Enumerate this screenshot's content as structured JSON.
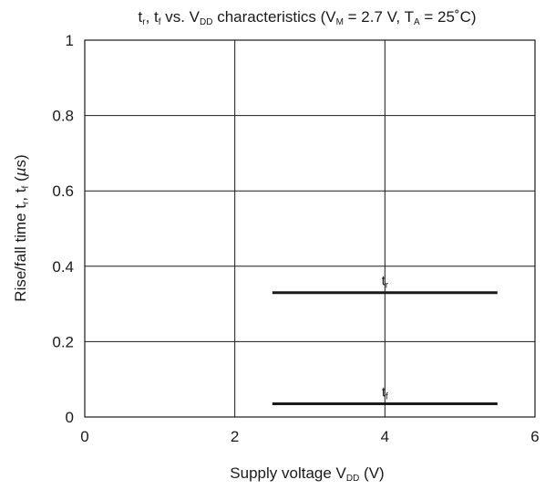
{
  "chart_data": {
    "type": "line",
    "title": "tr, tf vs. VDD characteristics (VM = 2.7 V, TA = 25˚C)",
    "xlabel": "Supply voltage VDD (V)",
    "ylabel": "Rise/fall time tr, tf (µs)",
    "xlim": [
      0,
      6
    ],
    "ylim": [
      0,
      1
    ],
    "x_ticks": [
      0,
      2,
      4,
      6
    ],
    "y_ticks": [
      0,
      0.2,
      0.4,
      0.6,
      0.8,
      1
    ],
    "x_tick_labels": [
      "0",
      "2",
      "4",
      "6"
    ],
    "y_tick_labels": [
      "0",
      "0.2",
      "0.4",
      "0.6",
      "0.8",
      "1"
    ],
    "grid": true,
    "series": [
      {
        "name": "tr",
        "x": [
          2.5,
          5.5
        ],
        "y": [
          0.33,
          0.33
        ]
      },
      {
        "name": "tf",
        "x": [
          2.5,
          5.5
        ],
        "y": [
          0.035,
          0.035
        ]
      }
    ]
  },
  "colors": {
    "line": "#1a1a1a",
    "grid": "#1a1a1a"
  }
}
